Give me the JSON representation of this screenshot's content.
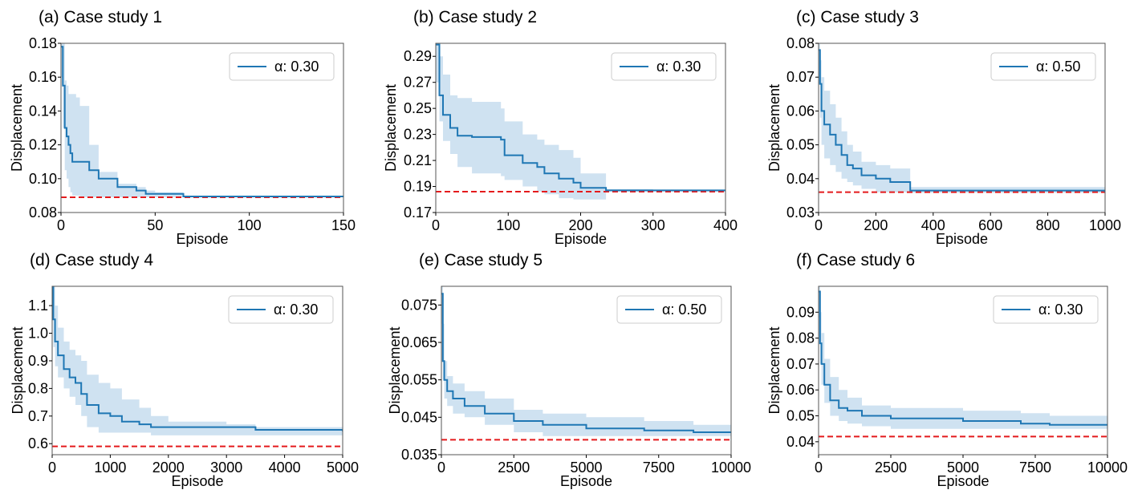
{
  "figure": {
    "line_color": "#1f77b4",
    "band_color": "#cfe2f1",
    "ref_color": "#e41a1c"
  },
  "chart_data": [
    {
      "type": "line",
      "title": "(a) Case study 1",
      "xlabel": "Episode",
      "ylabel": "Displacement",
      "xlim": [
        0,
        150
      ],
      "ylim": [
        0.08,
        0.18
      ],
      "xticks": [
        0,
        50,
        100,
        150
      ],
      "xtick_labels": [
        "0",
        "50",
        "100",
        "150"
      ],
      "yticks": [
        0.08,
        0.1,
        0.12,
        0.14,
        0.16,
        0.18
      ],
      "ytick_labels": [
        "0.08",
        "0.10",
        "0.12",
        "0.14",
        "0.16",
        "0.18"
      ],
      "legend": {
        "label": "α: 0.30",
        "position": "top-right"
      },
      "reference_line": 0.089,
      "series": [
        {
          "name": "α: 0.30",
          "x": [
            0,
            1,
            2,
            3,
            4,
            5,
            6,
            8,
            10,
            15,
            20,
            30,
            40,
            45,
            50,
            65,
            100,
            150
          ],
          "y": [
            0.178,
            0.155,
            0.13,
            0.125,
            0.12,
            0.115,
            0.11,
            0.11,
            0.11,
            0.105,
            0.1,
            0.095,
            0.093,
            0.091,
            0.091,
            0.0895,
            0.0895,
            0.0895
          ],
          "upper": [
            0.18,
            0.18,
            0.158,
            0.155,
            0.15,
            0.15,
            0.15,
            0.148,
            0.143,
            0.12,
            0.104,
            0.097,
            0.095,
            0.093,
            0.092,
            0.09,
            0.09,
            0.09
          ],
          "lower": [
            0.16,
            0.13,
            0.105,
            0.1,
            0.095,
            0.092,
            0.09,
            0.09,
            0.089,
            0.089,
            0.089,
            0.089,
            0.089,
            0.089,
            0.089,
            0.089,
            0.089,
            0.089
          ]
        }
      ]
    },
    {
      "type": "line",
      "title": "(b) Case study 2",
      "xlabel": "Episode",
      "ylabel": "Displacement",
      "xlim": [
        0,
        400
      ],
      "ylim": [
        0.17,
        0.3
      ],
      "xticks": [
        0,
        100,
        200,
        300,
        400
      ],
      "xtick_labels": [
        "0",
        "100",
        "200",
        "300",
        "400"
      ],
      "yticks": [
        0.17,
        0.19,
        0.21,
        0.23,
        0.25,
        0.27,
        0.29
      ],
      "ytick_labels": [
        "0.17",
        "0.19",
        "0.21",
        "0.23",
        "0.25",
        "0.27",
        "0.29"
      ],
      "legend": {
        "label": "α: 0.30",
        "position": "top-right"
      },
      "reference_line": 0.186,
      "series": [
        {
          "name": "α: 0.30",
          "x": [
            0,
            5,
            10,
            20,
            30,
            50,
            90,
            95,
            120,
            140,
            150,
            170,
            190,
            200,
            235,
            300,
            400
          ],
          "y": [
            0.299,
            0.26,
            0.245,
            0.235,
            0.229,
            0.228,
            0.226,
            0.214,
            0.208,
            0.205,
            0.2,
            0.196,
            0.193,
            0.189,
            0.187,
            0.187,
            0.187
          ],
          "upper": [
            0.3,
            0.29,
            0.276,
            0.26,
            0.258,
            0.255,
            0.25,
            0.24,
            0.23,
            0.226,
            0.222,
            0.218,
            0.212,
            0.2,
            0.188,
            0.187,
            0.187
          ],
          "lower": [
            0.27,
            0.24,
            0.225,
            0.215,
            0.205,
            0.2,
            0.198,
            0.195,
            0.19,
            0.186,
            0.184,
            0.181,
            0.18,
            0.18,
            0.186,
            0.186,
            0.186
          ]
        }
      ]
    },
    {
      "type": "line",
      "title": "(c) Case study 3",
      "xlabel": "Episode",
      "ylabel": "Displacement",
      "xlim": [
        0,
        1000
      ],
      "ylim": [
        0.03,
        0.08
      ],
      "xticks": [
        0,
        200,
        400,
        600,
        800,
        1000
      ],
      "xtick_labels": [
        "0",
        "200",
        "400",
        "600",
        "800",
        "1000"
      ],
      "yticks": [
        0.03,
        0.04,
        0.05,
        0.06,
        0.07,
        0.08
      ],
      "ytick_labels": [
        "0.03",
        "0.04",
        "0.05",
        "0.06",
        "0.07",
        "0.08"
      ],
      "legend": {
        "label": "α: 0.50",
        "position": "top-right"
      },
      "reference_line": 0.036,
      "series": [
        {
          "name": "α: 0.50",
          "x": [
            0,
            5,
            10,
            20,
            40,
            60,
            80,
            100,
            120,
            150,
            200,
            250,
            320,
            400,
            700,
            1000
          ],
          "y": [
            0.078,
            0.068,
            0.06,
            0.056,
            0.053,
            0.05,
            0.047,
            0.044,
            0.043,
            0.041,
            0.04,
            0.039,
            0.0365,
            0.0365,
            0.0365,
            0.036
          ],
          "upper": [
            0.08,
            0.075,
            0.07,
            0.066,
            0.062,
            0.058,
            0.054,
            0.05,
            0.048,
            0.045,
            0.044,
            0.043,
            0.0375,
            0.0375,
            0.0375,
            0.0362
          ],
          "lower": [
            0.068,
            0.058,
            0.05,
            0.046,
            0.044,
            0.042,
            0.04,
            0.039,
            0.038,
            0.037,
            0.036,
            0.036,
            0.0358,
            0.0358,
            0.0358,
            0.0358
          ]
        }
      ]
    },
    {
      "type": "line",
      "title": "(d) Case study 4",
      "xlabel": "Episode",
      "ylabel": "Displacement",
      "xlim": [
        0,
        5000
      ],
      "ylim": [
        0.56,
        1.17
      ],
      "xticks": [
        0,
        1000,
        2000,
        3000,
        4000,
        5000
      ],
      "xtick_labels": [
        "0",
        "1000",
        "2000",
        "3000",
        "4000",
        "5000"
      ],
      "yticks": [
        0.6,
        0.7,
        0.8,
        0.9,
        1.0,
        1.1
      ],
      "ytick_labels": [
        "0.6",
        "0.7",
        "0.8",
        "0.9",
        "1.0",
        "1.1"
      ],
      "legend": {
        "label": "α: 0.30",
        "position": "top-right"
      },
      "reference_line": 0.59,
      "series": [
        {
          "name": "α: 0.30",
          "x": [
            0,
            20,
            50,
            100,
            200,
            300,
            400,
            500,
            600,
            800,
            1000,
            1200,
            1500,
            1700,
            2000,
            3000,
            3500,
            4000,
            5000
          ],
          "y": [
            1.17,
            1.05,
            0.97,
            0.92,
            0.87,
            0.84,
            0.82,
            0.78,
            0.74,
            0.71,
            0.7,
            0.68,
            0.67,
            0.66,
            0.66,
            0.66,
            0.65,
            0.65,
            0.645
          ],
          "upper": [
            1.17,
            1.17,
            1.1,
            1.02,
            0.97,
            0.94,
            0.92,
            0.9,
            0.85,
            0.82,
            0.8,
            0.76,
            0.73,
            0.7,
            0.68,
            0.67,
            0.66,
            0.66,
            0.66
          ],
          "lower": [
            1.1,
            0.95,
            0.88,
            0.84,
            0.8,
            0.77,
            0.74,
            0.7,
            0.66,
            0.64,
            0.64,
            0.64,
            0.64,
            0.63,
            0.63,
            0.63,
            0.63,
            0.63,
            0.63
          ]
        }
      ]
    },
    {
      "type": "line",
      "title": "(e) Case study 5",
      "xlabel": "Episode",
      "ylabel": "Displacement",
      "xlim": [
        0,
        10000
      ],
      "ylim": [
        0.035,
        0.08
      ],
      "xticks": [
        0,
        2500,
        5000,
        7500,
        10000
      ],
      "xtick_labels": [
        "0",
        "2500",
        "5000",
        "7500",
        "10000"
      ],
      "yticks": [
        0.035,
        0.045,
        0.055,
        0.065,
        0.075
      ],
      "ytick_labels": [
        "0.035",
        "0.045",
        "0.055",
        "0.065",
        "0.075"
      ],
      "legend": {
        "label": "α: 0.50",
        "position": "top-right"
      },
      "reference_line": 0.039,
      "series": [
        {
          "name": "α: 0.50",
          "x": [
            0,
            50,
            100,
            200,
            400,
            800,
            1500,
            2500,
            3500,
            5000,
            7000,
            8700,
            10000
          ],
          "y": [
            0.078,
            0.06,
            0.055,
            0.052,
            0.05,
            0.048,
            0.046,
            0.044,
            0.043,
            0.042,
            0.0415,
            0.041,
            0.041
          ],
          "upper": [
            0.08,
            0.07,
            0.06,
            0.056,
            0.054,
            0.052,
            0.05,
            0.047,
            0.046,
            0.045,
            0.044,
            0.043,
            0.043
          ],
          "lower": [
            0.07,
            0.055,
            0.05,
            0.048,
            0.046,
            0.045,
            0.043,
            0.041,
            0.04,
            0.04,
            0.04,
            0.04,
            0.04
          ]
        }
      ]
    },
    {
      "type": "line",
      "title": "(f) Case study 6",
      "xlabel": "Episode",
      "ylabel": "Displacement",
      "xlim": [
        0,
        10000
      ],
      "ylim": [
        0.035,
        0.1
      ],
      "xticks": [
        0,
        2500,
        5000,
        7500,
        10000
      ],
      "xtick_labels": [
        "0",
        "2500",
        "5000",
        "7500",
        "10000"
      ],
      "yticks": [
        0.04,
        0.05,
        0.06,
        0.07,
        0.08,
        0.09
      ],
      "ytick_labels": [
        "0.04",
        "0.05",
        "0.06",
        "0.07",
        "0.08",
        "0.09"
      ],
      "legend": {
        "label": "α: 0.30",
        "position": "top-right"
      },
      "reference_line": 0.042,
      "series": [
        {
          "name": "α: 0.30",
          "x": [
            0,
            50,
            100,
            200,
            400,
            700,
            1000,
            1500,
            2500,
            5000,
            7000,
            8000,
            10000
          ],
          "y": [
            0.098,
            0.078,
            0.07,
            0.062,
            0.056,
            0.053,
            0.052,
            0.05,
            0.049,
            0.048,
            0.047,
            0.0465,
            0.0465
          ],
          "upper": [
            0.1,
            0.09,
            0.082,
            0.072,
            0.065,
            0.06,
            0.057,
            0.054,
            0.053,
            0.052,
            0.051,
            0.05,
            0.049
          ],
          "lower": [
            0.088,
            0.07,
            0.062,
            0.055,
            0.05,
            0.048,
            0.047,
            0.046,
            0.045,
            0.045,
            0.045,
            0.045,
            0.045
          ]
        }
      ]
    }
  ]
}
